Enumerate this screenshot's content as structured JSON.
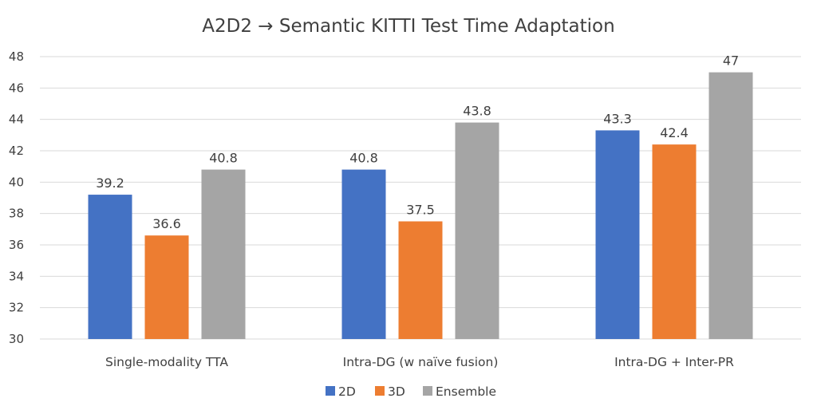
{
  "chart_data": {
    "type": "bar",
    "title": "A2D2 → Semantic KITTI Test Time Adaptation",
    "xlabel": "",
    "ylabel": "",
    "categories": [
      "Single-modality TTA",
      "Intra-DG (w naïve fusion)",
      "Intra-DG + Inter-PR"
    ],
    "series": [
      {
        "name": "2D",
        "color": "#4472c4",
        "values": [
          39.2,
          40.8,
          43.3
        ],
        "labels": [
          "39.2",
          "40.8",
          "43.3"
        ]
      },
      {
        "name": "3D",
        "color": "#ed7d31",
        "values": [
          36.6,
          37.5,
          42.4
        ],
        "labels": [
          "36.6",
          "37.5",
          "42.4"
        ]
      },
      {
        "name": "Ensemble",
        "color": "#a5a5a5",
        "values": [
          40.8,
          43.8,
          47.0
        ],
        "labels": [
          "40.8",
          "43.8",
          "47"
        ]
      }
    ],
    "ylim": [
      30,
      48
    ],
    "yticks": [
      "30",
      "32",
      "34",
      "36",
      "38",
      "40",
      "42",
      "44",
      "46",
      "48"
    ],
    "grid": true,
    "legend_position": "bottom"
  }
}
